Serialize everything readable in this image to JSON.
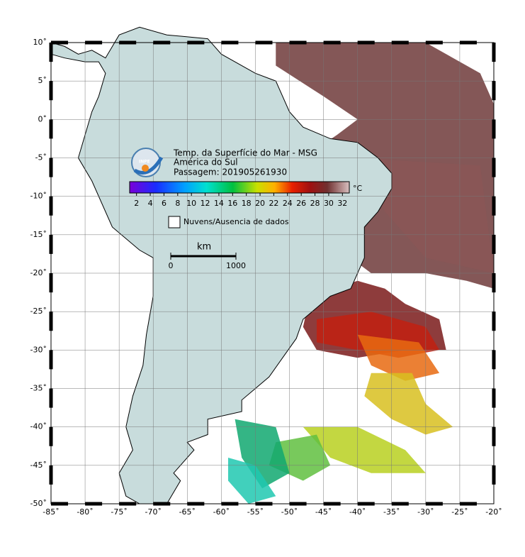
{
  "map": {
    "title_lines": [
      "Temp. da Superfície do Mar - MSG",
      "América do Sul",
      "Passagem: 201905261930"
    ],
    "logo_text": "INPE",
    "colorbar": {
      "unit": "°C",
      "lim": [
        1,
        33
      ],
      "ticks": [
        2,
        4,
        6,
        8,
        10,
        12,
        14,
        16,
        18,
        20,
        22,
        24,
        26,
        28,
        30,
        32
      ]
    },
    "legend": "Nuvens/Ausencia de dados",
    "scale_bar": {
      "unit": "km",
      "ticks": [
        0,
        1000
      ]
    },
    "lon_lim": [
      -85,
      -20
    ],
    "lat_lim": [
      -50,
      10
    ],
    "lon_ticks": [
      {
        "value": -85,
        "label": "-85˚"
      },
      {
        "value": -80,
        "label": "-80˚"
      },
      {
        "value": -75,
        "label": "-75˚"
      },
      {
        "value": -70,
        "label": "-70˚"
      },
      {
        "value": -65,
        "label": "-65˚"
      },
      {
        "value": -60,
        "label": "-60˚"
      },
      {
        "value": -55,
        "label": "-55˚"
      },
      {
        "value": -50,
        "label": "-50˚"
      },
      {
        "value": -45,
        "label": "-45˚"
      },
      {
        "value": -40,
        "label": "-40˚"
      },
      {
        "value": -35,
        "label": "-35˚"
      },
      {
        "value": -30,
        "label": "-30˚"
      },
      {
        "value": -25,
        "label": "-25˚"
      },
      {
        "value": -20,
        "label": "-20˚"
      }
    ],
    "lat_ticks": [
      {
        "value": 10,
        "label": "10˚"
      },
      {
        "value": 5,
        "label": "5˚"
      },
      {
        "value": 0,
        "label": "0˚"
      },
      {
        "value": -5,
        "label": "-5˚"
      },
      {
        "value": -10,
        "label": "-10˚"
      },
      {
        "value": -15,
        "label": "-15˚"
      },
      {
        "value": -20,
        "label": "-20˚"
      },
      {
        "value": -25,
        "label": "-25˚"
      },
      {
        "value": -30,
        "label": "-30˚"
      },
      {
        "value": -35,
        "label": "-35˚"
      },
      {
        "value": -40,
        "label": "-40˚"
      },
      {
        "value": -45,
        "label": "-45˚"
      },
      {
        "value": -50,
        "label": "-50˚"
      }
    ]
  }
}
